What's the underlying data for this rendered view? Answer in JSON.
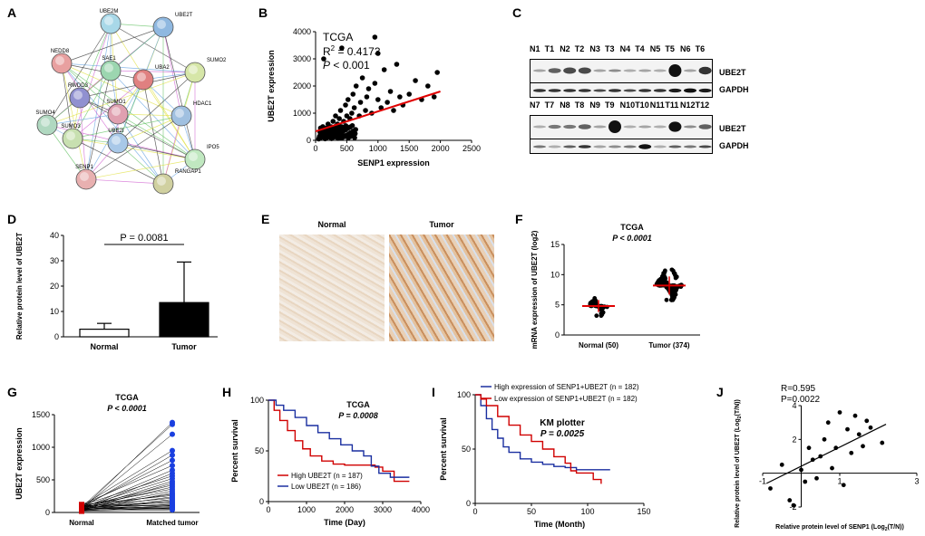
{
  "panels": {
    "A": "A",
    "B": "B",
    "C": "C",
    "D": "D",
    "E": "E",
    "F": "F",
    "G": "G",
    "H": "H",
    "I": "I",
    "J": "J"
  },
  "network": {
    "nodes": [
      "UBE2M",
      "UBE2T",
      "NEDD8",
      "SAE1",
      "SUMO2",
      "UBA2",
      "RWDD3",
      "SUMO1",
      "HDAC1",
      "SUMO4",
      "SUMO3",
      "UBE2I",
      "IPO5",
      "SENP1",
      "RANGAP1"
    ],
    "colors": [
      "#a8d8e8",
      "#8fb8e0",
      "#e8a0a0",
      "#9cd6b0",
      "#d6e6a8",
      "#e08080",
      "#9090d0",
      "#e0a0b0",
      "#a0c0e0",
      "#b0d8c0",
      "#c8e0b0",
      "#a8c8e8",
      "#c0e8c0",
      "#e8b0b0",
      "#d0d0a0"
    ]
  },
  "panelB": {
    "annotation": {
      "dataset": "TCGA",
      "r2_prefix": "R",
      "r2_sup": "2",
      "r2_value": " = 0.4173",
      "p_label": "P",
      "p_value": " < 0.001"
    },
    "chart_data": {
      "type": "scatter",
      "title": "TCGA",
      "xlabel": "SENP1 expression",
      "ylabel": "UBE2T expression",
      "xlim": [
        0,
        2500
      ],
      "ylim": [
        0,
        4000
      ],
      "xticks": [
        0,
        500,
        1000,
        1500,
        2000,
        2500
      ],
      "yticks": [
        0,
        1000,
        2000,
        3000,
        4000
      ],
      "points": [
        [
          60,
          120
        ],
        [
          80,
          200
        ],
        [
          100,
          300
        ],
        [
          120,
          150
        ],
        [
          150,
          400
        ],
        [
          180,
          250
        ],
        [
          200,
          600
        ],
        [
          220,
          350
        ],
        [
          250,
          500
        ],
        [
          280,
          700
        ],
        [
          300,
          450
        ],
        [
          320,
          900
        ],
        [
          350,
          600
        ],
        [
          380,
          800
        ],
        [
          400,
          1100
        ],
        [
          420,
          500
        ],
        [
          450,
          700
        ],
        [
          480,
          1300
        ],
        [
          500,
          900
        ],
        [
          520,
          1500
        ],
        [
          550,
          800
        ],
        [
          580,
          1000
        ],
        [
          600,
          1700
        ],
        [
          620,
          1200
        ],
        [
          650,
          2000
        ],
        [
          700,
          900
        ],
        [
          720,
          1400
        ],
        [
          750,
          2300
        ],
        [
          800,
          1100
        ],
        [
          820,
          1600
        ],
        [
          850,
          1900
        ],
        [
          900,
          1000
        ],
        [
          950,
          2100
        ],
        [
          1000,
          1500
        ],
        [
          1050,
          1200
        ],
        [
          1100,
          2600
        ],
        [
          1150,
          1400
        ],
        [
          1200,
          1800
        ],
        [
          1250,
          1100
        ],
        [
          1300,
          2800
        ],
        [
          1350,
          1600
        ],
        [
          1400,
          1300
        ],
        [
          1500,
          1700
        ],
        [
          1600,
          2200
        ],
        [
          1700,
          1500
        ],
        [
          1800,
          2000
        ],
        [
          1900,
          1600
        ],
        [
          1950,
          2500
        ],
        [
          130,
          3000
        ],
        [
          420,
          3400
        ],
        [
          950,
          3800
        ],
        [
          1000,
          3200
        ]
      ],
      "fit": [
        [
          0,
          330
        ],
        [
          2000,
          1800
        ]
      ]
    }
  },
  "panelC": {
    "row1_lanes": [
      "N1",
      "T1",
      "N2",
      "T2",
      "N3",
      "T3",
      "N4",
      "T4",
      "N5",
      "T5",
      "N6",
      "T6"
    ],
    "row2_lanes": [
      "N7",
      "T7",
      "N8",
      "T8",
      "N9",
      "T9",
      "N10",
      "T10",
      "N11",
      "T11",
      "N12",
      "T12"
    ],
    "ube2t": "UBE2T",
    "gapdh": "GAPDH"
  },
  "panelD": {
    "pvalue": "P = 0.0081",
    "chart_data": {
      "type": "bar",
      "categories": [
        "Normal",
        "Tumor"
      ],
      "values": [
        3,
        13.5
      ],
      "errors": [
        2.3,
        16
      ],
      "ylabel": "Relative protein level of UBE2T",
      "ylim": [
        0,
        40
      ],
      "yticks": [
        0,
        10,
        20,
        30,
        40
      ]
    }
  },
  "panelE": {
    "normal": "Normal",
    "tumor": "Tumor"
  },
  "panelF": {
    "title": "TCGA",
    "pvalue": "P < 0.0001",
    "chart_data": {
      "type": "scatter",
      "categories": [
        "Normal (50)",
        "Tumor (374)"
      ],
      "means": [
        4.8,
        8.2
      ],
      "sd": [
        1.0,
        1.5
      ],
      "ranges": [
        [
          3.2,
          7.2
        ],
        [
          5.8,
          11.5
        ]
      ],
      "ylabel": "mRNA expression of UBE2T (log2)",
      "ylim": [
        0,
        15
      ],
      "yticks": [
        0,
        5,
        10,
        15
      ]
    }
  },
  "panelG": {
    "title": "TCGA",
    "pvalue": "P < 0.0001",
    "chart_data": {
      "type": "line",
      "categories": [
        "Normal",
        "Matched tumor"
      ],
      "ylabel": "UBE2T expression",
      "ylim": [
        0,
        1500
      ],
      "yticks": [
        0,
        500,
        1000,
        1500
      ],
      "pairs": [
        [
          50,
          1380
        ],
        [
          80,
          1350
        ],
        [
          60,
          1200
        ],
        [
          100,
          950
        ],
        [
          70,
          880
        ],
        [
          90,
          800
        ],
        [
          120,
          720
        ],
        [
          60,
          650
        ],
        [
          40,
          600
        ],
        [
          110,
          560
        ],
        [
          80,
          520
        ],
        [
          50,
          480
        ],
        [
          30,
          450
        ],
        [
          90,
          420
        ],
        [
          70,
          390
        ],
        [
          100,
          360
        ],
        [
          60,
          330
        ],
        [
          40,
          300
        ],
        [
          80,
          280
        ],
        [
          120,
          260
        ],
        [
          50,
          240
        ],
        [
          90,
          220
        ],
        [
          30,
          200
        ],
        [
          70,
          180
        ],
        [
          60,
          160
        ],
        [
          100,
          150
        ],
        [
          40,
          130
        ],
        [
          80,
          120
        ],
        [
          20,
          110
        ],
        [
          110,
          100
        ],
        [
          60,
          90
        ],
        [
          50,
          80
        ],
        [
          30,
          70
        ],
        [
          70,
          60
        ],
        [
          90,
          55
        ],
        [
          40,
          50
        ],
        [
          20,
          40
        ]
      ]
    }
  },
  "panelH": {
    "title": "TCGA",
    "pvalue": "P = 0.0008",
    "chart_data": {
      "type": "line",
      "xlabel": "Time (Day)",
      "ylabel": "Percent survival",
      "xlim": [
        0,
        4000
      ],
      "ylim": [
        0,
        100
      ],
      "xticks": [
        0,
        1000,
        2000,
        3000,
        4000
      ],
      "yticks": [
        0,
        50,
        100
      ],
      "series": [
        {
          "name": "High UBE2T (n = 187)",
          "color": "#d00000",
          "points": [
            [
              0,
              100
            ],
            [
              150,
              90
            ],
            [
              300,
              80
            ],
            [
              500,
              70
            ],
            [
              700,
              60
            ],
            [
              900,
              52
            ],
            [
              1100,
              45
            ],
            [
              1400,
              40
            ],
            [
              1700,
              37
            ],
            [
              2000,
              36
            ],
            [
              2500,
              36
            ],
            [
              2800,
              34
            ],
            [
              3000,
              30
            ],
            [
              3300,
              20
            ],
            [
              3700,
              20
            ]
          ]
        },
        {
          "name": "Low UBE2T (n = 186)",
          "color": "#1a2fa0",
          "points": [
            [
              0,
              100
            ],
            [
              200,
              95
            ],
            [
              400,
              90
            ],
            [
              700,
              83
            ],
            [
              1000,
              75
            ],
            [
              1300,
              68
            ],
            [
              1600,
              62
            ],
            [
              1900,
              56
            ],
            [
              2200,
              50
            ],
            [
              2500,
              45
            ],
            [
              2700,
              35
            ],
            [
              2900,
              28
            ],
            [
              3200,
              24
            ],
            [
              3500,
              24
            ],
            [
              3700,
              24
            ]
          ]
        }
      ]
    }
  },
  "panelI": {
    "title": "KM plotter",
    "pvalue": "P = 0.0025",
    "chart_data": {
      "type": "line",
      "xlabel": "Time (Month)",
      "ylabel": "Percent survival",
      "xlim": [
        0,
        150
      ],
      "ylim": [
        0,
        100
      ],
      "xticks": [
        0,
        50,
        100,
        150
      ],
      "yticks": [
        0,
        50,
        100
      ],
      "series": [
        {
          "name": "High expression of SENP1+UBE2T (n = 182)",
          "color": "#1a2fa0",
          "points": [
            [
              0,
              100
            ],
            [
              5,
              90
            ],
            [
              10,
              78
            ],
            [
              15,
              68
            ],
            [
              20,
              60
            ],
            [
              25,
              52
            ],
            [
              30,
              47
            ],
            [
              40,
              41
            ],
            [
              50,
              38
            ],
            [
              60,
              36
            ],
            [
              70,
              34
            ],
            [
              80,
              33
            ],
            [
              90,
              31
            ],
            [
              100,
              31
            ],
            [
              110,
              31
            ],
            [
              120,
              31
            ]
          ]
        },
        {
          "name": "Low expression of SENP1+UBE2T (n = 182)",
          "color": "#d00000",
          "points": [
            [
              0,
              100
            ],
            [
              5,
              96
            ],
            [
              10,
              90
            ],
            [
              20,
              80
            ],
            [
              30,
              72
            ],
            [
              40,
              63
            ],
            [
              50,
              57
            ],
            [
              60,
              50
            ],
            [
              70,
              43
            ],
            [
              80,
              37
            ],
            [
              85,
              30
            ],
            [
              90,
              28
            ],
            [
              100,
              28
            ],
            [
              105,
              22
            ],
            [
              112,
              18
            ]
          ]
        }
      ]
    }
  },
  "panelJ": {
    "r": "R=0.595",
    "p": "P=0.0022",
    "chart_data": {
      "type": "scatter",
      "xlabel_prefix": "Relative protein level of SENP1 (Log",
      "xlabel_sub": "2",
      "xlabel_suffix": "(T/N))",
      "ylabel_prefix": "Relative protein level of UBE2T (Log",
      "ylabel_sub": "2",
      "ylabel_suffix": "(T/N))",
      "xlim": [
        -1,
        3
      ],
      "ylim": [
        -2,
        4
      ],
      "xticks": [
        -1,
        1,
        3
      ],
      "yticks": [
        -2,
        0,
        2,
        4
      ],
      "points": [
        [
          -0.8,
          -0.9
        ],
        [
          -0.5,
          0.5
        ],
        [
          -0.3,
          -1.6
        ],
        [
          -0.2,
          -1.9
        ],
        [
          0,
          0.2
        ],
        [
          0.1,
          -0.5
        ],
        [
          0.2,
          1.5
        ],
        [
          0.3,
          0.8
        ],
        [
          0.4,
          -0.3
        ],
        [
          0.5,
          1.0
        ],
        [
          0.6,
          2.0
        ],
        [
          0.7,
          3.0
        ],
        [
          0.8,
          0.3
        ],
        [
          0.9,
          1.5
        ],
        [
          1.0,
          3.6
        ],
        [
          1.1,
          -0.7
        ],
        [
          1.2,
          2.6
        ],
        [
          1.3,
          1.2
        ],
        [
          1.4,
          3.4
        ],
        [
          1.5,
          2.3
        ],
        [
          1.6,
          1.6
        ],
        [
          1.7,
          3.1
        ],
        [
          1.8,
          2.7
        ],
        [
          2.1,
          1.8
        ]
      ],
      "fit": [
        [
          -0.9,
          -0.6
        ],
        [
          2.2,
          2.9
        ]
      ]
    }
  }
}
